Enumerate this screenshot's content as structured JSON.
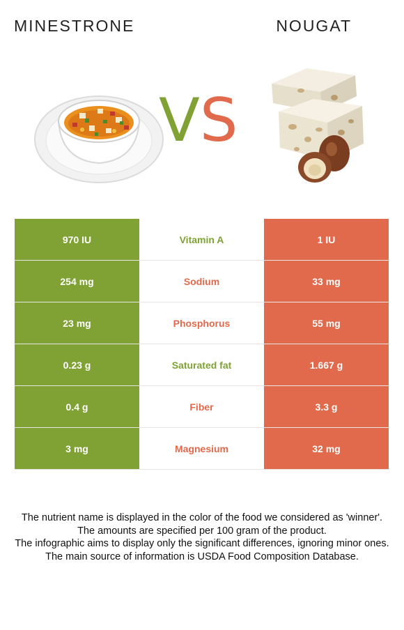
{
  "left_food": {
    "title": "MINESTRONE",
    "color": "#80a234",
    "image": "minestrone-soup-bowl"
  },
  "right_food": {
    "title": "NOUGAT",
    "color": "#e06a4b",
    "image": "nougat-with-hazelnuts"
  },
  "vs": {
    "v": "V",
    "s": "S"
  },
  "rows": [
    {
      "left": "970 IU",
      "nutrient": "Vitamin A",
      "right": "1 IU",
      "winner": "left"
    },
    {
      "left": "254 mg",
      "nutrient": "Sodium",
      "right": "33 mg",
      "winner": "right"
    },
    {
      "left": "23 mg",
      "nutrient": "Phosphorus",
      "right": "55 mg",
      "winner": "right"
    },
    {
      "left": "0.23 g",
      "nutrient": "Saturated fat",
      "right": "1.667 g",
      "winner": "left"
    },
    {
      "left": "0.4 g",
      "nutrient": "Fiber",
      "right": "3.3 g",
      "winner": "right"
    },
    {
      "left": "3 mg",
      "nutrient": "Magnesium",
      "right": "32 mg",
      "winner": "right"
    }
  ],
  "footnotes": [
    "The nutrient name is displayed in the color of the food we considered as 'winner'.",
    "The amounts are specified per 100 gram of the product.",
    "The infographic aims to display only the significant differences, ignoring minor ones.",
    "The main source of information is USDA Food Composition Database."
  ]
}
